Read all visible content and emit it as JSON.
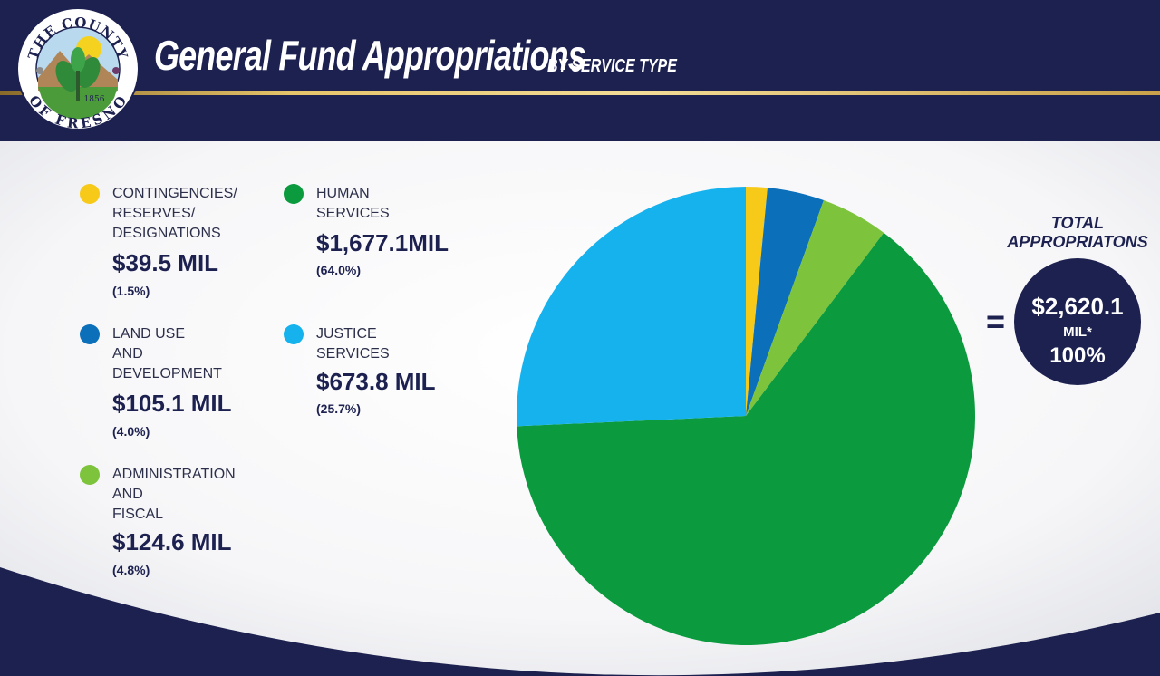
{
  "header": {
    "title": "General Fund Appropriations",
    "subtitle": "BY SERVICE TYPE",
    "seal": {
      "top_text": "THE COUNTY",
      "bottom_text": "OF FRESNO",
      "year": "1856"
    }
  },
  "colors": {
    "navy": "#1d2150",
    "gold": "#e6c46a",
    "contingencies": "#f7c919",
    "land_use": "#0b6fba",
    "administration": "#7dc43c",
    "human_services": "#0b9a3e",
    "justice": "#16b2ee"
  },
  "legend": [
    {
      "label": "CONTINGENCIES/\nRESERVES/\nDESIGNATIONS",
      "value": "$39.5 MIL",
      "percent": "(1.5%)"
    },
    {
      "label": "LAND USE\nAND\nDEVELOPMENT",
      "value": "$105.1 MIL",
      "percent": "(4.0%)"
    },
    {
      "label": "ADMINISTRATION\nAND\nFISCAL",
      "value": "$124.6 MIL",
      "percent": "(4.8%)"
    },
    {
      "label": "HUMAN\nSERVICES",
      "value": "$1,677.1MIL",
      "percent": "(64.0%)"
    },
    {
      "label": "JUSTICE\nSERVICES",
      "value": "$673.8 MIL",
      "percent": "(25.7%)"
    }
  ],
  "total": {
    "label": "TOTAL APPROPRIATONS",
    "equals": "=",
    "amount": "$2,620.1",
    "unit": "MIL*",
    "percent": "100%"
  },
  "chart_data": {
    "type": "pie",
    "title": "General Fund Appropriations",
    "subtitle": "BY SERVICE TYPE",
    "unit": "MIL",
    "slices": [
      {
        "name": "CONTINGENCIES/RESERVES/DESIGNATIONS",
        "value": 39.5,
        "percent": 1.5,
        "color": "#f7c919"
      },
      {
        "name": "LAND USE AND DEVELOPMENT",
        "value": 105.1,
        "percent": 4.0,
        "color": "#0b6fba"
      },
      {
        "name": "ADMINISTRATION AND FISCAL",
        "value": 124.6,
        "percent": 4.8,
        "color": "#7dc43c"
      },
      {
        "name": "HUMAN SERVICES",
        "value": 1677.1,
        "percent": 64.0,
        "color": "#0b9a3e"
      },
      {
        "name": "JUSTICE SERVICES",
        "value": 673.8,
        "percent": 25.7,
        "color": "#16b2ee"
      }
    ],
    "total": 2620.1,
    "legend_position": "left"
  }
}
